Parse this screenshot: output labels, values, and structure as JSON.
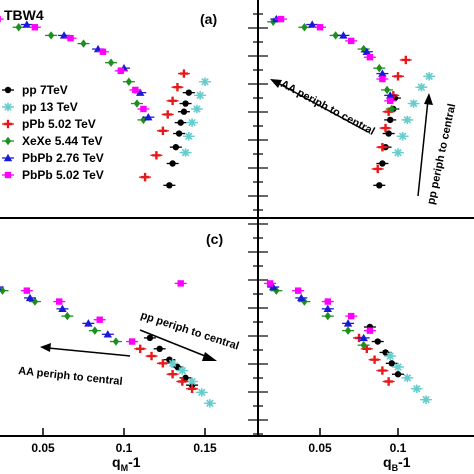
{
  "figure": {
    "label": "TBW4",
    "panel_a": "(a)",
    "panel_c": "(c)",
    "xlabel_left": "q",
    "xlabel_left_sub": "M",
    "xlabel_left_suffix": "-1",
    "xlabel_right": "q",
    "xlabel_right_sub": "B",
    "xlabel_right_suffix": "-1",
    "annotation_aa_top": "AA periph to central",
    "annotation_pp_top": "pp periph to central",
    "annotation_pp_bottom": "pp periph to central",
    "annotation_aa_bottom": "AA periph to central"
  },
  "colors": {
    "pp7": "#000000",
    "pp13": "#66cccc",
    "ppb": "#e8191a",
    "xexe": "#1e8f1e",
    "pbpb276": "#1a1ad6",
    "pbpb502": "#ff00ff"
  },
  "chart_data": [
    {
      "type": "scatter",
      "panel": "top-left",
      "xlim": [
        0.0,
        0.16
      ],
      "xticks": [
        0.05,
        0.1,
        0.15
      ],
      "legend_position": "middle-left",
      "series": [
        {
          "name": "pp 7TeV",
          "key": "pp7",
          "marker": "circle",
          "points": [
            [
              0.128,
              0.72
            ],
            [
              0.13,
              0.8
            ],
            [
              0.132,
              0.86
            ],
            [
              0.134,
              0.91
            ],
            [
              0.135,
              0.95
            ],
            [
              0.137,
              0.99
            ],
            [
              0.138,
              1.02
            ],
            [
              0.14,
              1.06
            ]
          ]
        },
        {
          "name": "pp 13 TeV",
          "key": "pp13",
          "marker": "star",
          "points": [
            [
              0.138,
              0.84
            ],
            [
              0.14,
              0.9
            ],
            [
              0.142,
              0.95
            ],
            [
              0.145,
              1.0
            ],
            [
              0.147,
              1.05
            ],
            [
              0.15,
              1.1
            ]
          ]
        },
        {
          "name": "pPb 5.02 TeV",
          "key": "ppb",
          "marker": "plus",
          "points": [
            [
              0.113,
              0.75
            ],
            [
              0.12,
              0.83
            ],
            [
              0.124,
              0.92
            ],
            [
              0.127,
              0.98
            ],
            [
              0.13,
              1.03
            ],
            [
              0.133,
              1.08
            ],
            [
              0.137,
              1.13
            ]
          ]
        },
        {
          "name": "XeXe 5.44 TeV",
          "key": "xexe",
          "marker": "diamond",
          "points": [
            [
              0.005,
              1.34
            ],
            [
              0.018,
              1.32
            ],
            [
              0.035,
              1.3
            ],
            [
              0.055,
              1.27
            ],
            [
              0.075,
              1.24
            ],
            [
              0.092,
              1.17
            ],
            [
              0.103,
              1.1
            ],
            [
              0.108,
              1.02
            ],
            [
              0.112,
              0.96
            ]
          ]
        },
        {
          "name": "PbPb 2.76 TeV",
          "key": "pbpb276",
          "marker": "triangle",
          "points": [
            [
              0.0,
              1.345
            ],
            [
              0.02,
              1.33
            ],
            [
              0.04,
              1.31
            ],
            [
              0.063,
              1.27
            ],
            [
              0.084,
              1.22
            ],
            [
              0.1,
              1.15
            ],
            [
              0.11,
              1.06
            ],
            [
              0.115,
              0.97
            ]
          ]
        },
        {
          "name": "PbPb 5.02 TeV",
          "key": "pbpb502",
          "marker": "square",
          "points": [
            [
              0.002,
              1.34
            ],
            [
              0.022,
              1.33
            ],
            [
              0.045,
              1.3
            ],
            [
              0.067,
              1.26
            ],
            [
              0.087,
              1.21
            ],
            [
              0.098,
              1.14
            ],
            [
              0.107,
              1.07
            ],
            [
              0.112,
              1.0
            ]
          ]
        }
      ]
    },
    {
      "type": "scatter",
      "panel": "top-right",
      "xlim": [
        0.0,
        0.16
      ],
      "xticks": [
        0.05,
        0.1,
        0.15
      ],
      "series": [
        {
          "name": "pp 7TeV",
          "key": "pp7",
          "marker": "circle",
          "points": [
            [
              0.088,
              0.72
            ],
            [
              0.09,
              0.8
            ],
            [
              0.092,
              0.86
            ],
            [
              0.094,
              0.91
            ],
            [
              0.095,
              0.96
            ],
            [
              0.097,
              1.0
            ],
            [
              0.098,
              1.04
            ]
          ]
        },
        {
          "name": "pp 13 TeV",
          "key": "pp13",
          "marker": "star",
          "points": [
            [
              0.1,
              0.84
            ],
            [
              0.103,
              0.9
            ],
            [
              0.106,
              0.96
            ],
            [
              0.11,
              1.02
            ],
            [
              0.115,
              1.08
            ],
            [
              0.12,
              1.12
            ]
          ]
        },
        {
          "name": "pPb 5.02 TeV",
          "key": "ppb",
          "marker": "plus",
          "points": [
            [
              0.087,
              0.78
            ],
            [
              0.09,
              0.86
            ],
            [
              0.092,
              0.93
            ],
            [
              0.094,
              0.99
            ],
            [
              0.097,
              1.05
            ],
            [
              0.1,
              1.12
            ],
            [
              0.105,
              1.18
            ]
          ]
        },
        {
          "name": "XeXe 5.44 TeV",
          "key": "xexe",
          "marker": "diamond",
          "points": [
            [
              0.005,
              1.34
            ],
            [
              0.02,
              1.32
            ],
            [
              0.04,
              1.3
            ],
            [
              0.06,
              1.27
            ],
            [
              0.078,
              1.22
            ],
            [
              0.088,
              1.15
            ],
            [
              0.093,
              1.07
            ],
            [
              0.096,
              1.0
            ]
          ]
        },
        {
          "name": "PbPb 2.76 TeV",
          "key": "pbpb276",
          "marker": "triangle",
          "points": [
            [
              0.002,
              1.345
            ],
            [
              0.022,
              1.33
            ],
            [
              0.045,
              1.31
            ],
            [
              0.065,
              1.27
            ],
            [
              0.08,
              1.21
            ],
            [
              0.09,
              1.13
            ],
            [
              0.095,
              1.05
            ]
          ]
        },
        {
          "name": "PbPb 5.02 TeV",
          "key": "pbpb502",
          "marker": "square",
          "points": [
            [
              0.0,
              1.34
            ],
            [
              0.025,
              1.33
            ],
            [
              0.05,
              1.3
            ],
            [
              0.07,
              1.25
            ],
            [
              0.082,
              1.19
            ],
            [
              0.09,
              1.11
            ],
            [
              0.095,
              1.03
            ]
          ]
        }
      ]
    },
    {
      "type": "scatter",
      "panel": "bottom-left",
      "xlim": [
        0.0,
        0.16
      ],
      "xticks": [
        0.05,
        0.1,
        0.15
      ],
      "series": [
        {
          "name": "pp 7TeV",
          "key": "pp7",
          "marker": "circle",
          "points": [
            [
              0.116,
              0.47
            ],
            [
              0.122,
              0.44
            ],
            [
              0.128,
              0.41
            ],
            [
              0.133,
              0.39
            ],
            [
              0.138,
              0.36
            ],
            [
              0.142,
              0.34
            ]
          ]
        },
        {
          "name": "pp 13 TeV",
          "key": "pp13",
          "marker": "star",
          "points": [
            [
              0.13,
              0.4
            ],
            [
              0.136,
              0.38
            ],
            [
              0.142,
              0.35
            ],
            [
              0.148,
              0.32
            ],
            [
              0.153,
              0.29
            ]
          ]
        },
        {
          "name": "pPb 5.02 TeV",
          "key": "ppb",
          "marker": "plus",
          "points": [
            [
              0.11,
              0.44
            ],
            [
              0.117,
              0.42
            ],
            [
              0.124,
              0.4
            ],
            [
              0.13,
              0.37
            ],
            [
              0.136,
              0.35
            ],
            [
              0.142,
              0.33
            ]
          ]
        },
        {
          "name": "XeXe 5.44 TeV",
          "key": "xexe",
          "marker": "diamond",
          "points": [
            [
              0.005,
              0.62
            ],
            [
              0.025,
              0.6
            ],
            [
              0.045,
              0.57
            ],
            [
              0.065,
              0.53
            ],
            [
              0.082,
              0.49
            ],
            [
              0.095,
              0.46
            ]
          ]
        },
        {
          "name": "PbPb 2.76 TeV",
          "key": "pbpb276",
          "marker": "triangle",
          "points": [
            [
              0.002,
              0.63
            ],
            [
              0.022,
              0.61
            ],
            [
              0.042,
              0.58
            ],
            [
              0.062,
              0.55
            ],
            [
              0.078,
              0.51
            ],
            [
              0.09,
              0.48
            ]
          ]
        },
        {
          "name": "PbPb 5.02 TeV",
          "key": "pbpb502",
          "marker": "square",
          "points": [
            [
              0.0,
              0.64
            ],
            [
              0.02,
              0.62
            ],
            [
              0.04,
              0.6
            ],
            [
              0.06,
              0.57
            ],
            [
              0.085,
              0.52
            ],
            [
              0.105,
              0.46
            ],
            [
              0.135,
              0.62
            ]
          ]
        }
      ]
    },
    {
      "type": "scatter",
      "panel": "bottom-right",
      "xlim": [
        0.0,
        0.16
      ],
      "xticks": [
        0.05,
        0.1,
        0.15
      ],
      "series": [
        {
          "name": "pp 7TeV",
          "key": "pp7",
          "marker": "circle",
          "points": [
            [
              0.082,
              0.5
            ],
            [
              0.087,
              0.46
            ],
            [
              0.092,
              0.43
            ],
            [
              0.096,
              0.4
            ],
            [
              0.1,
              0.37
            ]
          ]
        },
        {
          "name": "pp 13 TeV",
          "key": "pp13",
          "marker": "star",
          "points": [
            [
              0.095,
              0.42
            ],
            [
              0.1,
              0.39
            ],
            [
              0.106,
              0.36
            ],
            [
              0.112,
              0.33
            ],
            [
              0.118,
              0.3
            ]
          ]
        },
        {
          "name": "pPb 5.02 TeV",
          "key": "ppb",
          "marker": "plus",
          "points": [
            [
              0.075,
              0.47
            ],
            [
              0.08,
              0.44
            ],
            [
              0.085,
              0.41
            ],
            [
              0.09,
              0.38
            ],
            [
              0.094,
              0.35
            ]
          ]
        },
        {
          "name": "XeXe 5.44 TeV",
          "key": "xexe",
          "marker": "diamond",
          "points": [
            [
              0.005,
              0.62
            ],
            [
              0.022,
              0.6
            ],
            [
              0.04,
              0.57
            ],
            [
              0.055,
              0.53
            ],
            [
              0.068,
              0.49
            ],
            [
              0.078,
              0.45
            ]
          ]
        },
        {
          "name": "PbPb 2.76 TeV",
          "key": "pbpb276",
          "marker": "triangle",
          "points": [
            [
              0.002,
              0.63
            ],
            [
              0.02,
              0.61
            ],
            [
              0.038,
              0.58
            ],
            [
              0.055,
              0.55
            ],
            [
              0.068,
              0.51
            ],
            [
              0.078,
              0.47
            ]
          ]
        },
        {
          "name": "PbPb 5.02 TeV",
          "key": "pbpb502",
          "marker": "square",
          "points": [
            [
              0.0,
              0.64
            ],
            [
              0.018,
              0.62
            ],
            [
              0.036,
              0.6
            ],
            [
              0.055,
              0.57
            ],
            [
              0.07,
              0.53
            ],
            [
              0.082,
              0.49
            ]
          ]
        }
      ]
    }
  ]
}
